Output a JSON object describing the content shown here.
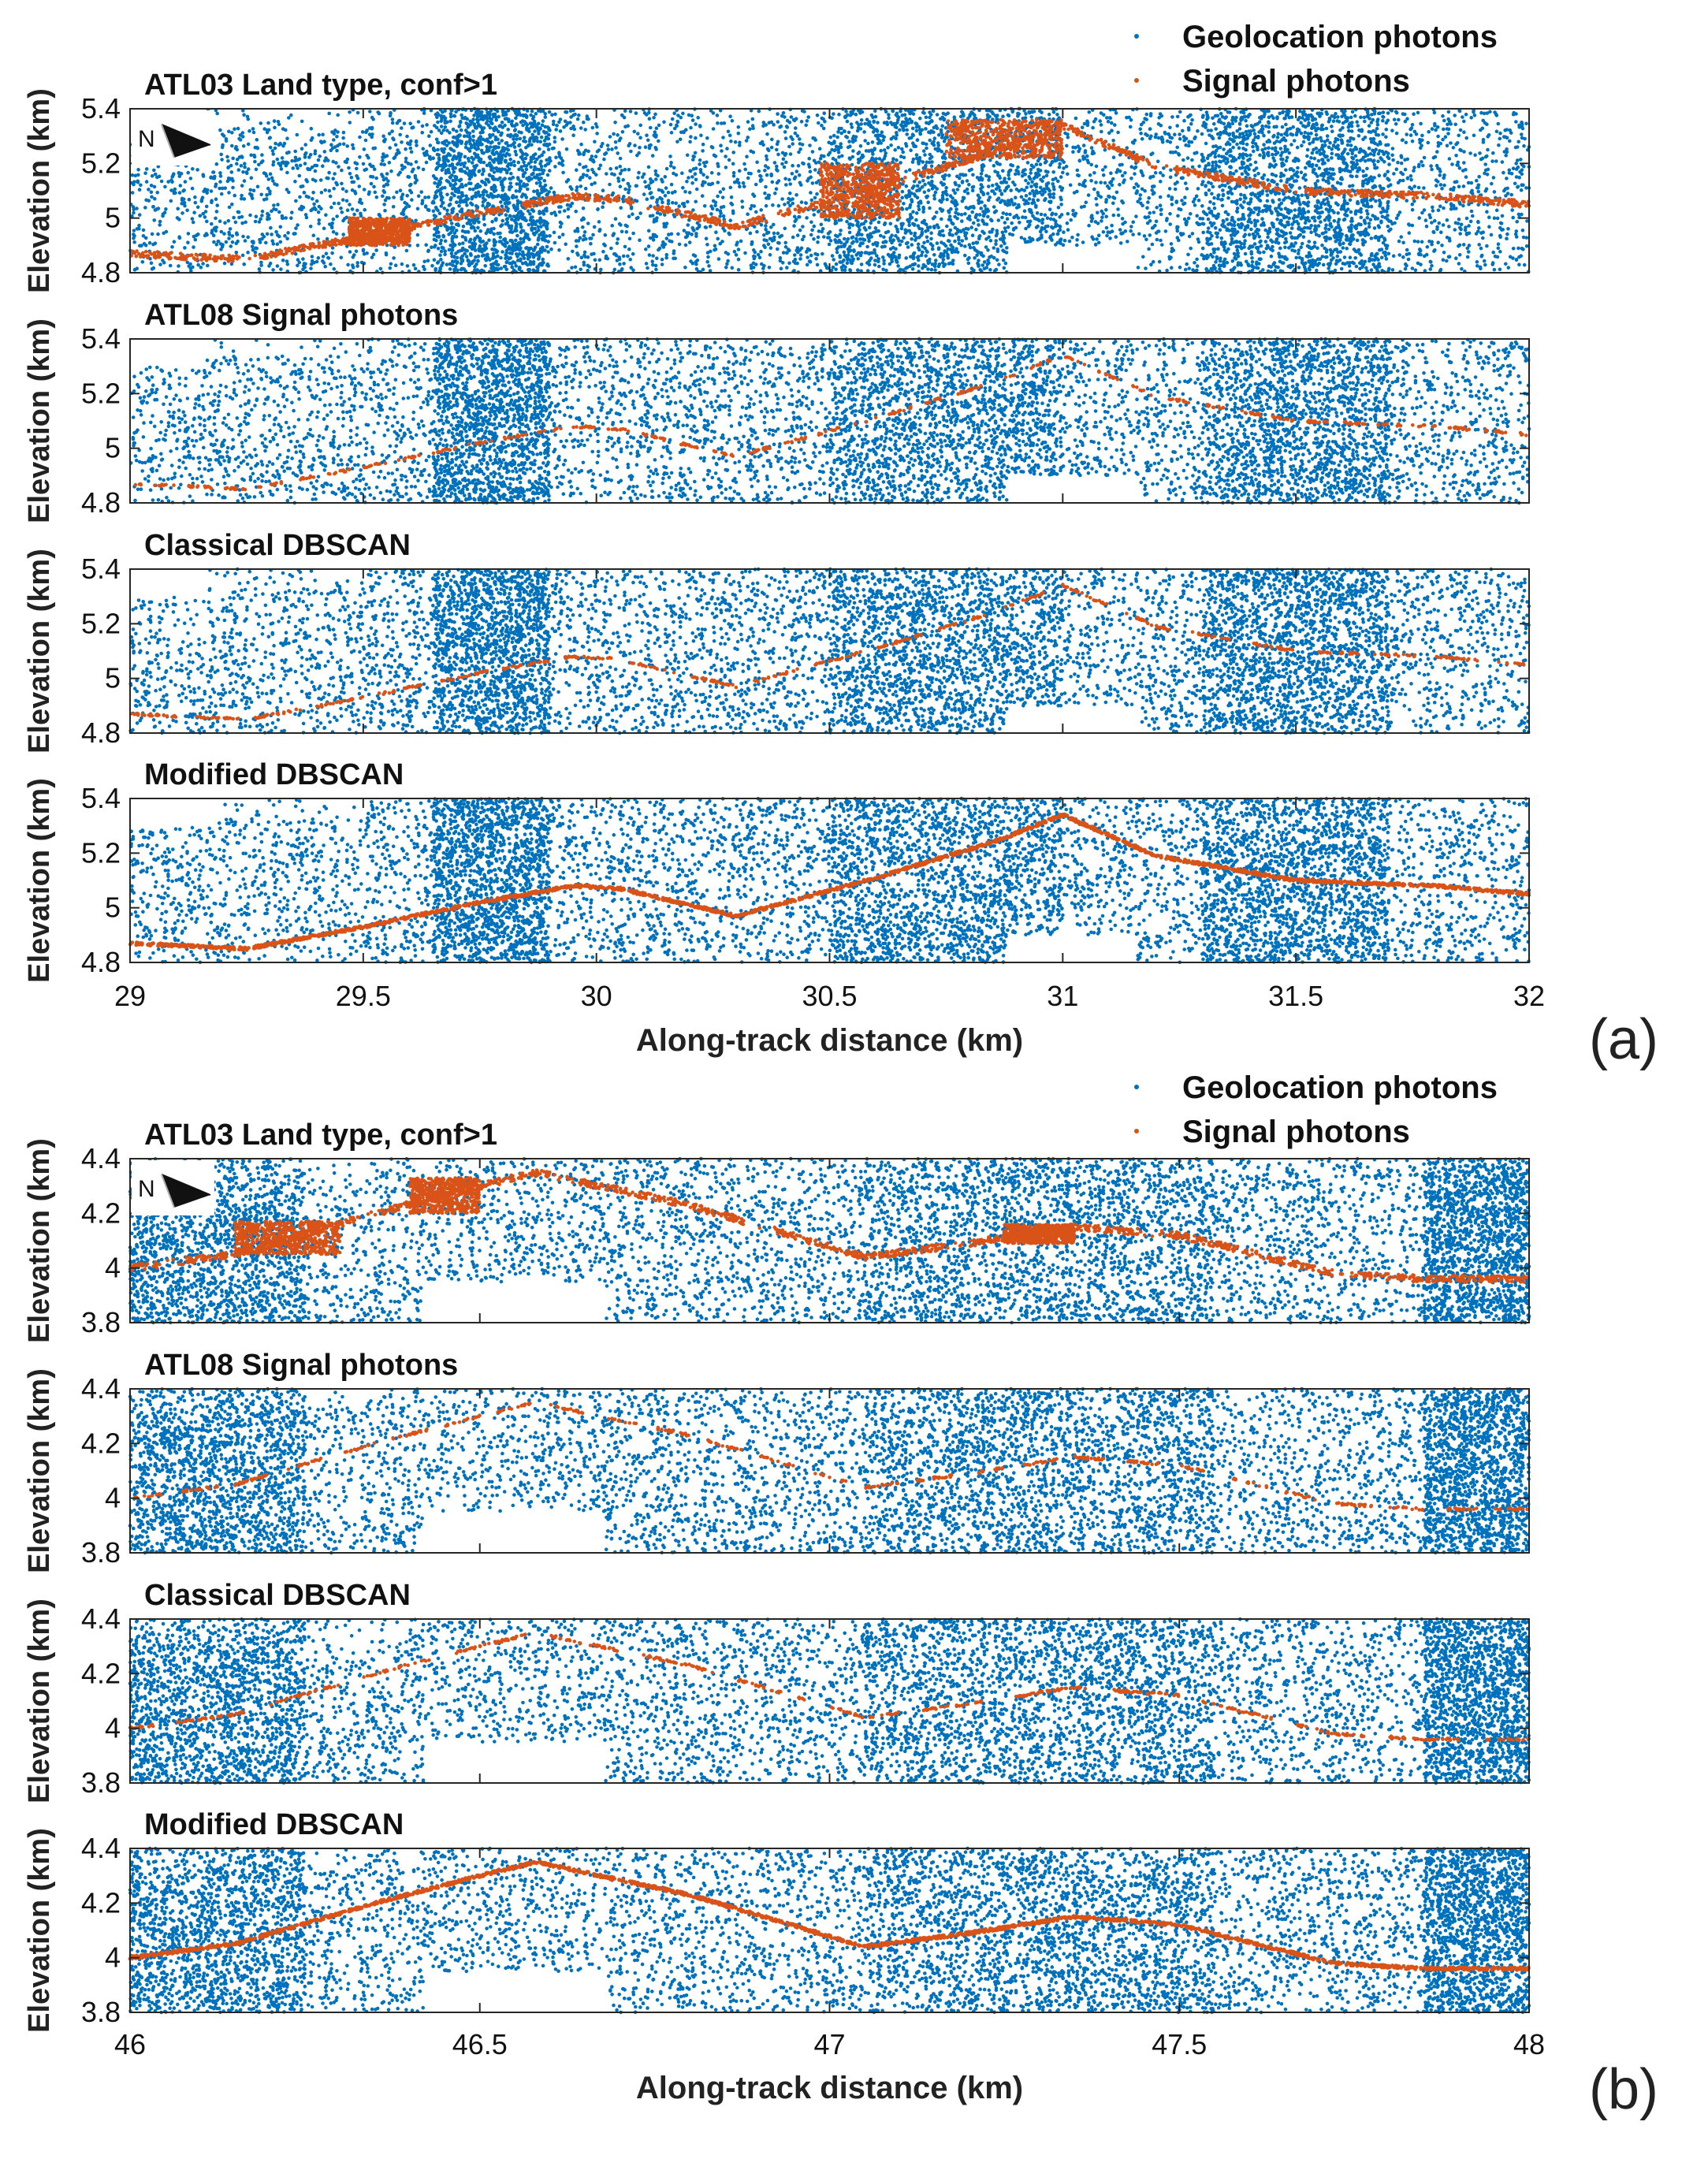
{
  "colors": {
    "geolocation": "#0072BD",
    "signal": "#D95319",
    "axis": "#262626",
    "background": "#ffffff"
  },
  "chart_data": [
    {
      "panel_label": "(a)",
      "type": "scatter",
      "xlabel": "Along-track distance (km)",
      "xlim": [
        29,
        32
      ],
      "xticks": [
        29,
        29.5,
        30,
        30.5,
        31,
        31.5,
        32
      ],
      "xtick_labels": [
        "29",
        "29.5",
        "30",
        "30.5",
        "31",
        "31.5",
        "32"
      ],
      "ylabel": "Elevation (km)",
      "ylim": [
        4.8,
        5.4
      ],
      "yticks": [
        4.8,
        5,
        5.2,
        5.4
      ],
      "ytick_labels": [
        "4.8",
        "5",
        "5.2",
        "5.4"
      ],
      "legend": {
        "placement": "top-right",
        "entries": [
          "Geolocation photons",
          "Signal photons"
        ]
      },
      "north_label": "N",
      "ground_profile": {
        "x": [
          29,
          29.25,
          29.5,
          29.75,
          29.95,
          30.05,
          30.3,
          30.6,
          30.85,
          31.0,
          31.2,
          31.5,
          31.8,
          32
        ],
        "y": [
          4.87,
          4.85,
          4.93,
          5.02,
          5.08,
          5.07,
          4.97,
          5.11,
          5.24,
          5.34,
          5.19,
          5.1,
          5.08,
          5.05
        ]
      },
      "noise_gaps": [
        {
          "x": [
            30.88,
            31.16
          ],
          "y": [
            4.8,
            4.9
          ]
        }
      ],
      "dense_noise_ranges": [
        {
          "x": [
            29.65,
            29.9
          ]
        },
        {
          "x": [
            30.5,
            31.0
          ]
        },
        {
          "x": [
            31.3,
            31.7
          ]
        }
      ],
      "subplots": [
        {
          "title": "ATL03 Land type, conf>1",
          "signal_style": "thick-with-clusters",
          "signal_clusters": [
            {
              "x": [
                29.47,
                29.6
              ],
              "y": [
                4.9,
                5.0
              ]
            },
            {
              "x": [
                30.48,
                30.65
              ],
              "y": [
                5.0,
                5.2
              ]
            },
            {
              "x": [
                30.75,
                31.0
              ],
              "y": [
                5.22,
                5.36
              ]
            }
          ]
        },
        {
          "title": "ATL08 Signal photons",
          "signal_style": "thin-sparse",
          "signal_clusters": []
        },
        {
          "title": "Classical DBSCAN",
          "signal_style": "thin-gappy",
          "signal_clusters": []
        },
        {
          "title": "Modified DBSCAN",
          "signal_style": "continuous",
          "signal_clusters": []
        }
      ]
    },
    {
      "panel_label": "(b)",
      "type": "scatter",
      "xlabel": "Along-track distance (km)",
      "xlim": [
        46,
        48
      ],
      "xticks": [
        46,
        46.5,
        47,
        47.5,
        48
      ],
      "xtick_labels": [
        "46",
        "46.5",
        "47",
        "47.5",
        "48"
      ],
      "ylabel": "Elevation (km)",
      "ylim": [
        3.8,
        4.4
      ],
      "yticks": [
        3.8,
        4,
        4.2,
        4.4
      ],
      "ytick_labels": [
        "3.8",
        "4",
        "4.2",
        "4.4"
      ],
      "legend": {
        "placement": "top-right",
        "entries": [
          "Geolocation photons",
          "Signal photons"
        ]
      },
      "north_label": "N",
      "ground_profile": {
        "x": [
          46,
          46.15,
          46.35,
          46.5,
          46.58,
          46.8,
          47.05,
          47.2,
          47.35,
          47.5,
          47.72,
          47.85,
          48
        ],
        "y": [
          4.0,
          4.05,
          4.2,
          4.3,
          4.35,
          4.23,
          4.04,
          4.09,
          4.15,
          4.12,
          3.98,
          3.96,
          3.96
        ]
      },
      "noise_gaps": [
        {
          "x": [
            46.42,
            46.68
          ],
          "y": [
            3.8,
            3.95
          ]
        }
      ],
      "dense_noise_ranges": [
        {
          "x": [
            46.0,
            46.25
          ]
        },
        {
          "x": [
            47.05,
            47.55
          ]
        },
        {
          "x": [
            47.85,
            48.0
          ]
        }
      ],
      "subplots": [
        {
          "title": "ATL03 Land type, conf>1",
          "signal_style": "thick-with-clusters",
          "signal_clusters": [
            {
              "x": [
                46.15,
                46.3
              ],
              "y": [
                4.05,
                4.17
              ]
            },
            {
              "x": [
                46.4,
                46.5
              ],
              "y": [
                4.2,
                4.33
              ]
            },
            {
              "x": [
                47.25,
                47.35
              ],
              "y": [
                4.09,
                4.16
              ]
            }
          ]
        },
        {
          "title": "ATL08 Signal photons",
          "signal_style": "thin-sparse",
          "signal_clusters": []
        },
        {
          "title": "Classical DBSCAN",
          "signal_style": "thin-gappy",
          "signal_clusters": []
        },
        {
          "title": "Modified DBSCAN",
          "signal_style": "continuous",
          "signal_clusters": []
        }
      ]
    }
  ]
}
